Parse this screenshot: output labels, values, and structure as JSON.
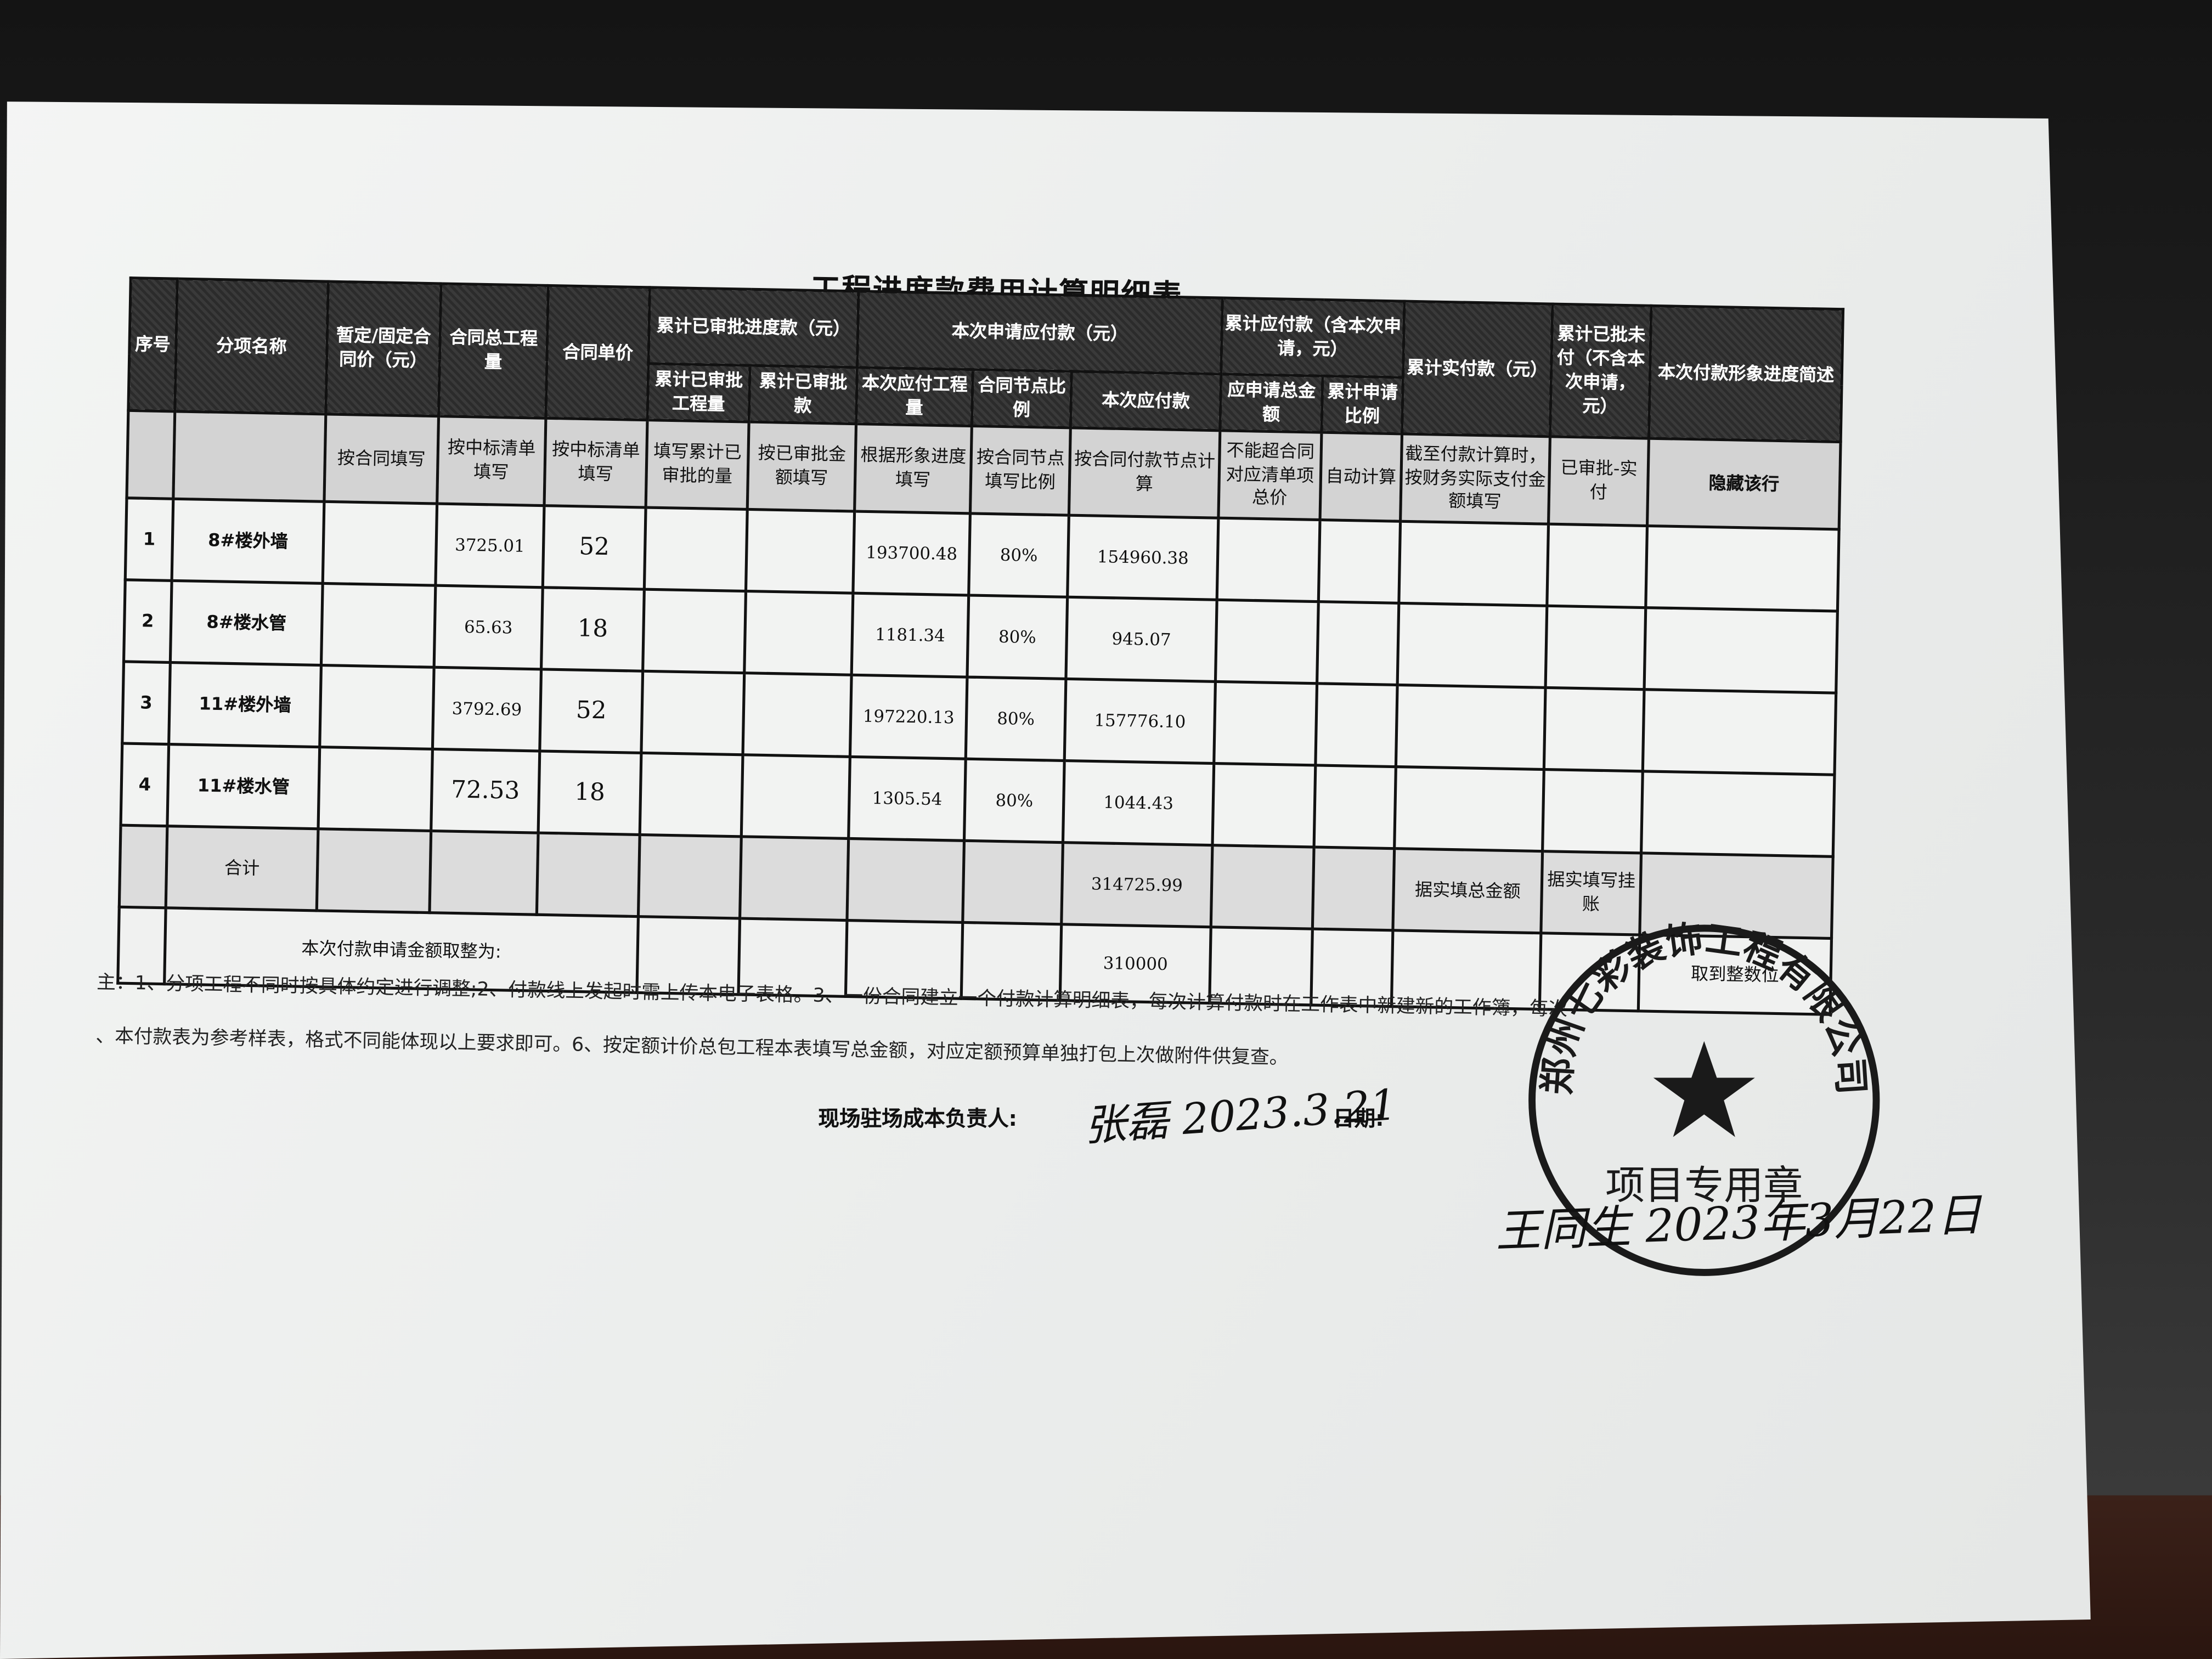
{
  "title": "工程进度款费用计算明细表",
  "header_row1": [
    {
      "text": "序号",
      "rs": 2,
      "cs": 1
    },
    {
      "text": "分项名称",
      "rs": 2,
      "cs": 1
    },
    {
      "text": "暂定/固定合同价（元）",
      "rs": 2,
      "cs": 1
    },
    {
      "text": "合同总工程量",
      "rs": 2,
      "cs": 1
    },
    {
      "text": "合同单价",
      "rs": 2,
      "cs": 1
    },
    {
      "text": "累计已审批进度款（元）",
      "rs": 1,
      "cs": 2
    },
    {
      "text": "本次申请应付款（元）",
      "rs": 1,
      "cs": 3
    },
    {
      "text": "累计应付款（含本次申请，元）",
      "rs": 1,
      "cs": 2
    },
    {
      "text": "累计实付款（元）",
      "rs": 2,
      "cs": 1
    },
    {
      "text": "累计已批未付（不含本次申请，元）",
      "rs": 2,
      "cs": 1
    },
    {
      "text": "本次付款形象进度简述",
      "rs": 2,
      "cs": 1
    }
  ],
  "header_row2": [
    "累计已审批工程量",
    "累计已审批款",
    "本次应付工程量",
    "合同节点比例",
    "本次应付款",
    "应申请总金额",
    "累计申请比例"
  ],
  "instruction_row": [
    "",
    "",
    "按合同填写",
    "按中标清单填写",
    "按中标清单填写",
    "填写累计已审批的量",
    "按已审批金额填写",
    "根据形象进度填写",
    "按合同节点填写比例",
    "按合同付款节点计算",
    "不能超合同对应清单项总价",
    "自动计算",
    "截至付款计算时，按财务实际支付金额填写",
    "已审批-实付",
    "隐藏该行"
  ],
  "rows": [
    [
      "1",
      "8#楼外墙",
      "",
      "3725.01",
      "52",
      "",
      "",
      "193700.48",
      "80%",
      "154960.38",
      "",
      "",
      "",
      "",
      ""
    ],
    [
      "2",
      "8#楼水管",
      "",
      "65.63",
      "18",
      "",
      "",
      "1181.34",
      "80%",
      "945.07",
      "",
      "",
      "",
      "",
      ""
    ],
    [
      "3",
      "11#楼外墙",
      "",
      "3792.69",
      "52",
      "",
      "",
      "197220.13",
      "80%",
      "157776.10",
      "",
      "",
      "",
      "",
      ""
    ],
    [
      "4",
      "11#楼水管",
      "",
      "72.53",
      "18",
      "",
      "",
      "1305.54",
      "80%",
      "1044.43",
      "",
      "",
      "",
      "",
      ""
    ]
  ],
  "total_row": [
    "",
    "合计",
    "",
    "",
    "",
    "",
    "",
    "",
    "",
    "314725.99",
    "",
    "",
    "据实填总金额",
    "据实填写挂账",
    ""
  ],
  "final_row": {
    "label": "本次付款申请金额取整为:",
    "amount": "310000",
    "note": "取到整数位"
  },
  "notes": [
    "主：1、分项工程不同时按具体约定进行调整;2、付款线上发起时需上传本电子表格。3、一份合同建立一个付款计算明细表，每次计算付款时在工作表中新建新的工作簿，每次",
    "、本付款表为参考样表，格式不同能体现以上要求即可。6、按定额计价总包工程本表填写总金额，对应定额预算单独打包上次做附件供复查。"
  ],
  "signoff": {
    "cost_manager_label": "现场驻场成本负责人:",
    "cost_manager_signature": "张磊 2023.3.21",
    "date_label": "日期:",
    "second_signature": "王同生 2023年3月22日"
  },
  "stamp": {
    "company": "郑州七彩装饰工程有限公司",
    "purpose": "项目专用章",
    "color": "#1a1a1a"
  }
}
